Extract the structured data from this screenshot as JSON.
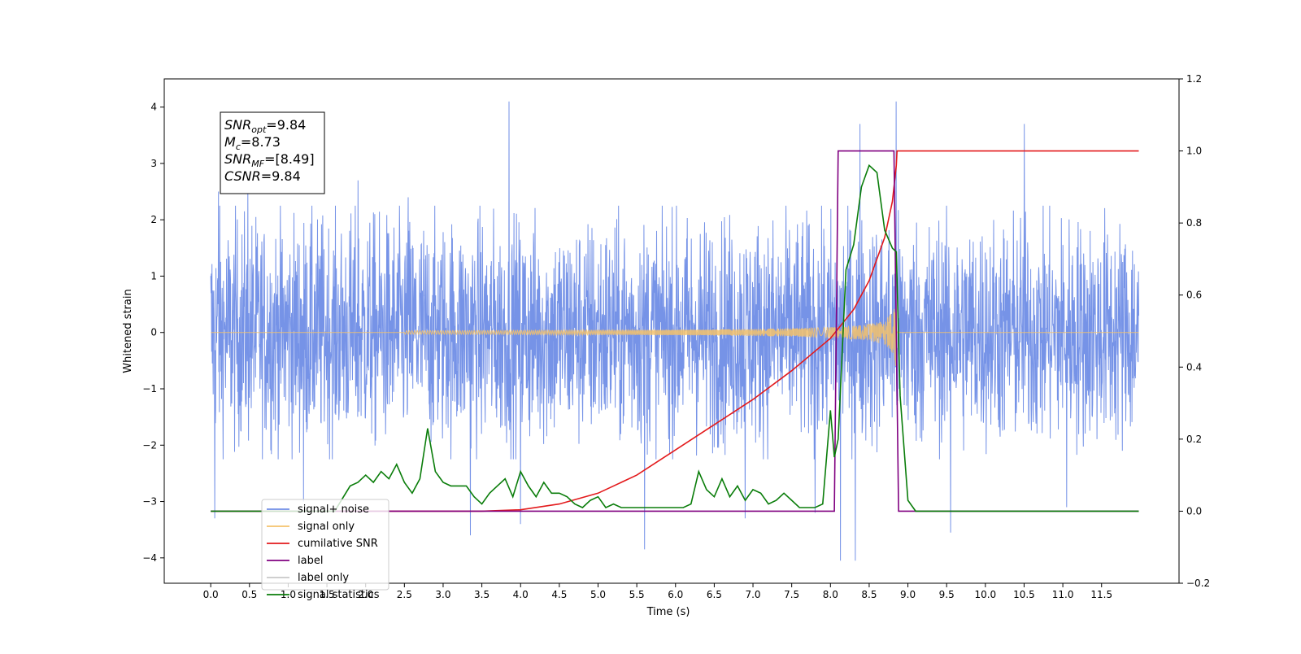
{
  "chart_data": {
    "type": "line",
    "xlabel": "Time (s)",
    "ylabel": "Whitened strain",
    "xlim": [
      -0.6,
      12.5
    ],
    "ylim": [
      -4.45,
      4.5
    ],
    "y2lim": [
      -0.2,
      1.2
    ],
    "x_ticks": [
      0.0,
      0.5,
      1.0,
      1.5,
      2.0,
      2.5,
      3.0,
      3.5,
      4.0,
      4.5,
      5.0,
      5.5,
      6.0,
      6.5,
      7.0,
      7.5,
      8.0,
      8.5,
      9.0,
      9.5,
      10.0,
      10.5,
      11.0,
      11.5
    ],
    "x_tick_labels": [
      "0.0",
      "0.5",
      "1.0",
      "1.5",
      "2.0",
      "2.5",
      "3.0",
      "3.5",
      "4.0",
      "4.5",
      "5.0",
      "5.5",
      "6.0",
      "6.5",
      "7.0",
      "7.5",
      "8.0",
      "8.5",
      "9.0",
      "9.5",
      "10.0",
      "10.5",
      "11.0",
      "11.5"
    ],
    "y_ticks": [
      -4,
      -3,
      -2,
      -1,
      0,
      1,
      2,
      3,
      4
    ],
    "y_tick_labels": [
      "−4",
      "−3",
      "−2",
      "−1",
      "0",
      "1",
      "2",
      "3",
      "4"
    ],
    "y2_ticks": [
      -0.2,
      0.0,
      0.2,
      0.4,
      0.6,
      0.8,
      1.0,
      1.2
    ],
    "y2_tick_labels": [
      "−0.2",
      "0.0",
      "0.2",
      "0.4",
      "0.6",
      "0.8",
      "1.0",
      "1.2"
    ],
    "annotation": {
      "lines": [
        {
          "base": "SNR",
          "sub": "opt",
          "value": "=9.84"
        },
        {
          "base": "M",
          "sub": "c",
          "value": "=8.73"
        },
        {
          "base": "SNR",
          "sub": "MF",
          "value": "=[8.49]"
        },
        {
          "base": "CSNR",
          "sub": "",
          "value": "=9.84"
        }
      ]
    },
    "legend": {
      "position": "lower-left",
      "entries": [
        {
          "label": "signal+ noise",
          "color": "#6f8de6"
        },
        {
          "label": "signal only",
          "color": "#f5c26b"
        },
        {
          "label": "cumilative SNR",
          "color": "#e31a1c"
        },
        {
          "label": "label",
          "color": "#800080"
        },
        {
          "label": "label only",
          "color": "#c8c8c8"
        },
        {
          "label": "signal statistics",
          "color": "#0a7d0a"
        }
      ]
    },
    "series": [
      {
        "name": "signal+ noise",
        "axis": "left",
        "color": "#6f8de6",
        "style": "dense noise, x 0.0–11.98, typical range about ±1.8, spikes to about ±4.1",
        "x_range": [
          0.0,
          11.98
        ],
        "amplitude_typical": 1.8,
        "spikes": [
          {
            "x": 0.05,
            "y": -3.3
          },
          {
            "x": 0.1,
            "y": 2.5
          },
          {
            "x": 0.48,
            "y": 2.6
          },
          {
            "x": 1.2,
            "y": -3.0
          },
          {
            "x": 1.9,
            "y": 2.7
          },
          {
            "x": 2.55,
            "y": 2.4
          },
          {
            "x": 3.35,
            "y": -3.6
          },
          {
            "x": 3.85,
            "y": 4.1
          },
          {
            "x": 4.0,
            "y": -3.4
          },
          {
            "x": 5.6,
            "y": -3.85
          },
          {
            "x": 6.9,
            "y": -3.3
          },
          {
            "x": 7.8,
            "y": -3.2
          },
          {
            "x": 8.13,
            "y": -4.05
          },
          {
            "x": 8.32,
            "y": -4.05
          },
          {
            "x": 8.38,
            "y": 3.7
          },
          {
            "x": 8.85,
            "y": 4.1
          },
          {
            "x": 9.55,
            "y": -3.55
          },
          {
            "x": 10.5,
            "y": 3.7
          },
          {
            "x": 11.05,
            "y": -3.1
          }
        ]
      },
      {
        "name": "signal only",
        "axis": "left",
        "color": "#f5c26b",
        "style": "chirp, amplitude grows from ~0.01 at x=2.5 to ~0.75 at x=8.85, then near zero",
        "chirp_start": 2.5,
        "chirp_merger": 8.85,
        "peak_amplitude": 0.75
      },
      {
        "name": "cumilative SNR",
        "axis": "right",
        "color": "#e31a1c",
        "x": [
          0.0,
          3.5,
          4.0,
          4.5,
          5.0,
          5.5,
          6.0,
          6.5,
          7.0,
          7.5,
          8.0,
          8.3,
          8.5,
          8.7,
          8.8,
          8.85,
          8.86,
          11.98
        ],
        "y": [
          0.0,
          0.0,
          0.004,
          0.02,
          0.05,
          0.1,
          0.17,
          0.24,
          0.31,
          0.39,
          0.48,
          0.56,
          0.64,
          0.76,
          0.86,
          0.96,
          1.0,
          1.0
        ]
      },
      {
        "name": "label",
        "axis": "right",
        "color": "#800080",
        "x": [
          0.0,
          8.05,
          8.1,
          8.82,
          8.88,
          11.98
        ],
        "y": [
          0.0,
          0.0,
          1.0,
          1.0,
          0.0,
          0.0
        ]
      },
      {
        "name": "signal statistics",
        "axis": "right",
        "color": "#0a7d0a",
        "x": [
          0.0,
          1.6,
          1.8,
          1.9,
          2.0,
          2.1,
          2.2,
          2.3,
          2.4,
          2.5,
          2.6,
          2.7,
          2.8,
          2.9,
          3.0,
          3.1,
          3.2,
          3.3,
          3.4,
          3.5,
          3.6,
          3.7,
          3.8,
          3.9,
          4.0,
          4.1,
          4.2,
          4.3,
          4.4,
          4.5,
          4.6,
          4.7,
          4.8,
          4.9,
          5.0,
          5.1,
          5.2,
          5.3,
          5.4,
          5.5,
          5.6,
          5.8,
          6.0,
          6.1,
          6.2,
          6.3,
          6.4,
          6.5,
          6.6,
          6.7,
          6.8,
          6.9,
          7.0,
          7.1,
          7.2,
          7.3,
          7.4,
          7.5,
          7.6,
          7.7,
          7.8,
          7.9,
          8.0,
          8.05,
          8.1,
          8.2,
          8.3,
          8.4,
          8.5,
          8.6,
          8.7,
          8.8,
          8.85,
          8.9,
          9.0,
          9.1,
          9.3,
          9.5,
          9.7,
          10.0,
          11.98
        ],
        "y": [
          0.0,
          0.0,
          0.07,
          0.08,
          0.1,
          0.08,
          0.11,
          0.09,
          0.13,
          0.08,
          0.05,
          0.09,
          0.23,
          0.11,
          0.08,
          0.07,
          0.07,
          0.07,
          0.04,
          0.02,
          0.05,
          0.07,
          0.09,
          0.04,
          0.11,
          0.07,
          0.04,
          0.08,
          0.05,
          0.05,
          0.04,
          0.02,
          0.01,
          0.03,
          0.04,
          0.01,
          0.02,
          0.01,
          0.01,
          0.01,
          0.01,
          0.01,
          0.01,
          0.01,
          0.02,
          0.11,
          0.06,
          0.04,
          0.09,
          0.04,
          0.07,
          0.03,
          0.06,
          0.05,
          0.02,
          0.03,
          0.05,
          0.03,
          0.01,
          0.01,
          0.01,
          0.02,
          0.28,
          0.15,
          0.2,
          0.67,
          0.74,
          0.9,
          0.96,
          0.94,
          0.78,
          0.73,
          0.72,
          0.32,
          0.03,
          0.0,
          0.0,
          0.0,
          0.0,
          0.0,
          0.0
        ]
      }
    ]
  }
}
